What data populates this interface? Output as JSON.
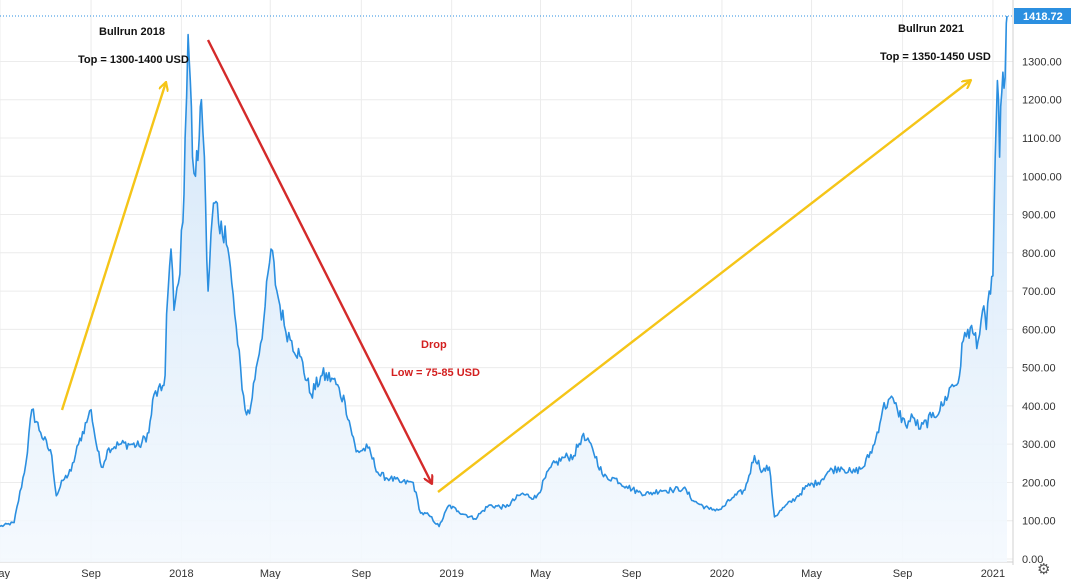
{
  "chart_data": {
    "type": "area",
    "ylim": [
      0,
      1450
    ],
    "y_ticks": [
      0,
      100,
      200,
      300,
      400,
      500,
      600,
      700,
      800,
      900,
      1000,
      1100,
      1200,
      1300
    ],
    "y_tick_labels": [
      "0.00",
      "100.00",
      "200.00",
      "300.00",
      "400.00",
      "500.00",
      "600.00",
      "700.00",
      "800.00",
      "900.00",
      "1000.00",
      "1100.00",
      "1200.00",
      "1300.00"
    ],
    "x_ticks": [
      "2017-05-01",
      "2017-09-01",
      "2018-01-01",
      "2018-05-01",
      "2018-09-01",
      "2019-01-01",
      "2019-05-01",
      "2019-09-01",
      "2020-01-01",
      "2020-05-01",
      "2020-09-01",
      "2021-01-01"
    ],
    "x_tick_labels": [
      "ay",
      "Sep",
      "2018",
      "May",
      "Sep",
      "2019",
      "May",
      "Sep",
      "2020",
      "May",
      "Sep",
      "2021"
    ],
    "last_price_label": "1418.72",
    "last_price": 1418.72,
    "grid": true,
    "series": [
      {
        "color": "#2b8fe0",
        "points": [
          [
            "2017-05-01",
            85
          ],
          [
            "2017-05-20",
            95
          ],
          [
            "2017-06-05",
            250
          ],
          [
            "2017-06-13",
            390
          ],
          [
            "2017-06-25",
            330
          ],
          [
            "2017-07-10",
            270
          ],
          [
            "2017-07-16",
            165
          ],
          [
            "2017-07-25",
            205
          ],
          [
            "2017-08-05",
            230
          ],
          [
            "2017-08-15",
            300
          ],
          [
            "2017-08-28",
            370
          ],
          [
            "2017-09-01",
            390
          ],
          [
            "2017-09-08",
            300
          ],
          [
            "2017-09-15",
            240
          ],
          [
            "2017-09-25",
            290
          ],
          [
            "2017-10-10",
            300
          ],
          [
            "2017-10-25",
            300
          ],
          [
            "2017-11-05",
            295
          ],
          [
            "2017-11-18",
            330
          ],
          [
            "2017-11-25",
            430
          ],
          [
            "2017-12-05",
            440
          ],
          [
            "2017-12-10",
            480
          ],
          [
            "2017-12-12",
            640
          ],
          [
            "2017-12-18",
            810
          ],
          [
            "2017-12-22",
            650
          ],
          [
            "2017-12-28",
            720
          ],
          [
            "2018-01-03",
            880
          ],
          [
            "2018-01-06",
            1100
          ],
          [
            "2018-01-10",
            1370
          ],
          [
            "2018-01-13",
            1250
          ],
          [
            "2018-01-16",
            1050
          ],
          [
            "2018-01-20",
            1000
          ],
          [
            "2018-01-25",
            1100
          ],
          [
            "2018-01-28",
            1200
          ],
          [
            "2018-02-01",
            1050
          ],
          [
            "2018-02-06",
            700
          ],
          [
            "2018-02-10",
            850
          ],
          [
            "2018-02-15",
            930
          ],
          [
            "2018-02-22",
            850
          ],
          [
            "2018-03-01",
            870
          ],
          [
            "2018-03-10",
            720
          ],
          [
            "2018-03-18",
            560
          ],
          [
            "2018-03-28",
            390
          ],
          [
            "2018-04-03",
            380
          ],
          [
            "2018-04-12",
            500
          ],
          [
            "2018-04-22",
            620
          ],
          [
            "2018-05-02",
            810
          ],
          [
            "2018-05-10",
            700
          ],
          [
            "2018-05-20",
            610
          ],
          [
            "2018-05-30",
            570
          ],
          [
            "2018-06-10",
            530
          ],
          [
            "2018-06-25",
            430
          ],
          [
            "2018-07-10",
            480
          ],
          [
            "2018-07-25",
            470
          ],
          [
            "2018-08-10",
            410
          ],
          [
            "2018-08-25",
            280
          ],
          [
            "2018-09-10",
            290
          ],
          [
            "2018-09-25",
            220
          ],
          [
            "2018-10-10",
            210
          ],
          [
            "2018-10-25",
            200
          ],
          [
            "2018-11-10",
            200
          ],
          [
            "2018-11-20",
            120
          ],
          [
            "2018-12-01",
            115
          ],
          [
            "2018-12-15",
            85
          ],
          [
            "2018-12-28",
            140
          ],
          [
            "2019-01-10",
            125
          ],
          [
            "2019-02-01",
            105
          ],
          [
            "2019-02-20",
            140
          ],
          [
            "2019-03-15",
            135
          ],
          [
            "2019-04-05",
            170
          ],
          [
            "2019-04-25",
            160
          ],
          [
            "2019-05-15",
            240
          ],
          [
            "2019-06-01",
            265
          ],
          [
            "2019-06-15",
            270
          ],
          [
            "2019-06-26",
            320
          ],
          [
            "2019-07-10",
            290
          ],
          [
            "2019-07-25",
            215
          ],
          [
            "2019-08-10",
            210
          ],
          [
            "2019-08-25",
            190
          ],
          [
            "2019-09-10",
            175
          ],
          [
            "2019-09-25",
            170
          ],
          [
            "2019-10-10",
            180
          ],
          [
            "2019-10-25",
            180
          ],
          [
            "2019-11-10",
            185
          ],
          [
            "2019-11-25",
            150
          ],
          [
            "2019-12-15",
            130
          ],
          [
            "2019-12-31",
            130
          ],
          [
            "2020-01-15",
            160
          ],
          [
            "2020-02-01",
            180
          ],
          [
            "2020-02-14",
            270
          ],
          [
            "2020-02-25",
            230
          ],
          [
            "2020-03-05",
            240
          ],
          [
            "2020-03-12",
            110
          ],
          [
            "2020-03-25",
            135
          ],
          [
            "2020-04-10",
            160
          ],
          [
            "2020-04-25",
            190
          ],
          [
            "2020-05-10",
            200
          ],
          [
            "2020-05-25",
            230
          ],
          [
            "2020-06-10",
            240
          ],
          [
            "2020-06-25",
            225
          ],
          [
            "2020-07-10",
            240
          ],
          [
            "2020-07-25",
            300
          ],
          [
            "2020-08-05",
            390
          ],
          [
            "2020-08-15",
            420
          ],
          [
            "2020-08-25",
            390
          ],
          [
            "2020-09-05",
            350
          ],
          [
            "2020-09-15",
            370
          ],
          [
            "2020-09-25",
            340
          ],
          [
            "2020-10-10",
            370
          ],
          [
            "2020-10-25",
            400
          ],
          [
            "2020-11-05",
            450
          ],
          [
            "2020-11-15",
            460
          ],
          [
            "2020-11-22",
            570
          ],
          [
            "2020-11-28",
            600
          ],
          [
            "2020-12-05",
            590
          ],
          [
            "2020-12-12",
            570
          ],
          [
            "2020-12-18",
            650
          ],
          [
            "2020-12-23",
            600
          ],
          [
            "2020-12-27",
            700
          ],
          [
            "2021-01-01",
            740
          ],
          [
            "2021-01-04",
            1050
          ],
          [
            "2021-01-07",
            1250
          ],
          [
            "2021-01-10",
            1050
          ],
          [
            "2021-01-13",
            1220
          ],
          [
            "2021-01-16",
            1230
          ],
          [
            "2021-01-19",
            1400
          ],
          [
            "2021-01-20",
            1418.72
          ]
        ]
      }
    ],
    "annotations": [
      {
        "id": "bullrun2018_title",
        "text": "Bullrun 2018"
      },
      {
        "id": "bullrun2018_top",
        "text": "Top = 1300-1400 USD"
      },
      {
        "id": "bullrun2021_title",
        "text": "Bullrun 2021"
      },
      {
        "id": "bullrun2021_top",
        "text": "Top = 1350-1450 USD"
      },
      {
        "id": "drop_title",
        "text": "Drop"
      },
      {
        "id": "drop_low",
        "text": "Low = 75-85 USD"
      }
    ],
    "arrow_colors": {
      "up": "#f5c518",
      "down": "#d42a2a"
    },
    "line_color": "#2b8fe0",
    "area_color": "#e8f2fc",
    "price_tag_color": "#2b8fe0"
  }
}
